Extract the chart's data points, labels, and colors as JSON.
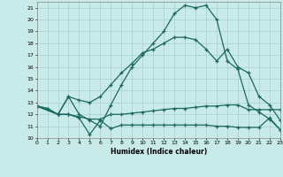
{
  "xlabel": "Humidex (Indice chaleur)",
  "bg_color": "#c8eae8",
  "grid_color": "#a8d0cc",
  "line_color": "#1a6860",
  "line1_x": [
    0,
    1,
    2,
    3,
    4,
    5,
    6,
    7,
    8,
    9,
    10,
    11,
    12,
    13,
    14,
    15,
    16,
    17,
    18,
    19,
    20,
    21,
    22,
    23
  ],
  "line1_y": [
    12.7,
    12.5,
    12.0,
    12.0,
    11.7,
    10.3,
    11.5,
    10.8,
    11.1,
    11.1,
    11.1,
    11.1,
    11.1,
    11.1,
    11.1,
    11.1,
    11.1,
    11.0,
    11.0,
    10.9,
    10.9,
    10.9,
    11.7,
    10.7
  ],
  "line2_x": [
    0,
    1,
    2,
    3,
    4,
    5,
    6,
    7,
    8,
    9,
    10,
    11,
    12,
    13,
    14,
    15,
    16,
    17,
    18,
    19,
    20,
    21,
    22,
    23
  ],
  "line2_y": [
    12.7,
    12.5,
    12.0,
    12.0,
    11.8,
    11.6,
    11.6,
    12.0,
    12.0,
    12.1,
    12.2,
    12.3,
    12.4,
    12.5,
    12.5,
    12.6,
    12.7,
    12.7,
    12.8,
    12.8,
    12.4,
    12.4,
    12.4,
    12.4
  ],
  "line3_x": [
    0,
    2,
    3,
    4,
    5,
    6,
    7,
    8,
    9,
    10,
    11,
    12,
    13,
    14,
    15,
    16,
    17,
    18,
    19,
    20,
    21,
    22,
    23
  ],
  "line3_y": [
    12.7,
    12.0,
    13.5,
    13.2,
    13.0,
    13.5,
    14.5,
    15.5,
    16.3,
    17.2,
    17.5,
    18.0,
    18.5,
    18.5,
    18.3,
    17.5,
    16.5,
    17.5,
    16.0,
    15.5,
    13.5,
    12.8,
    11.5
  ],
  "line4_x": [
    0,
    2,
    3,
    4,
    5,
    6,
    7,
    8,
    9,
    10,
    11,
    12,
    13,
    14,
    15,
    16,
    17,
    18,
    19,
    20,
    21,
    22,
    23
  ],
  "line4_y": [
    12.7,
    12.0,
    13.5,
    12.0,
    11.5,
    11.0,
    12.8,
    14.5,
    16.0,
    17.0,
    18.0,
    19.0,
    20.5,
    21.2,
    21.0,
    21.2,
    20.0,
    16.5,
    15.8,
    12.8,
    12.2,
    11.6,
    10.7
  ],
  "xlim": [
    0,
    23
  ],
  "ylim": [
    10,
    21.5
  ],
  "yticks": [
    10,
    11,
    12,
    13,
    14,
    15,
    16,
    17,
    18,
    19,
    20,
    21
  ],
  "xticks": [
    0,
    1,
    2,
    3,
    4,
    5,
    6,
    7,
    8,
    9,
    10,
    11,
    12,
    13,
    14,
    15,
    16,
    17,
    18,
    19,
    20,
    21,
    22,
    23
  ]
}
